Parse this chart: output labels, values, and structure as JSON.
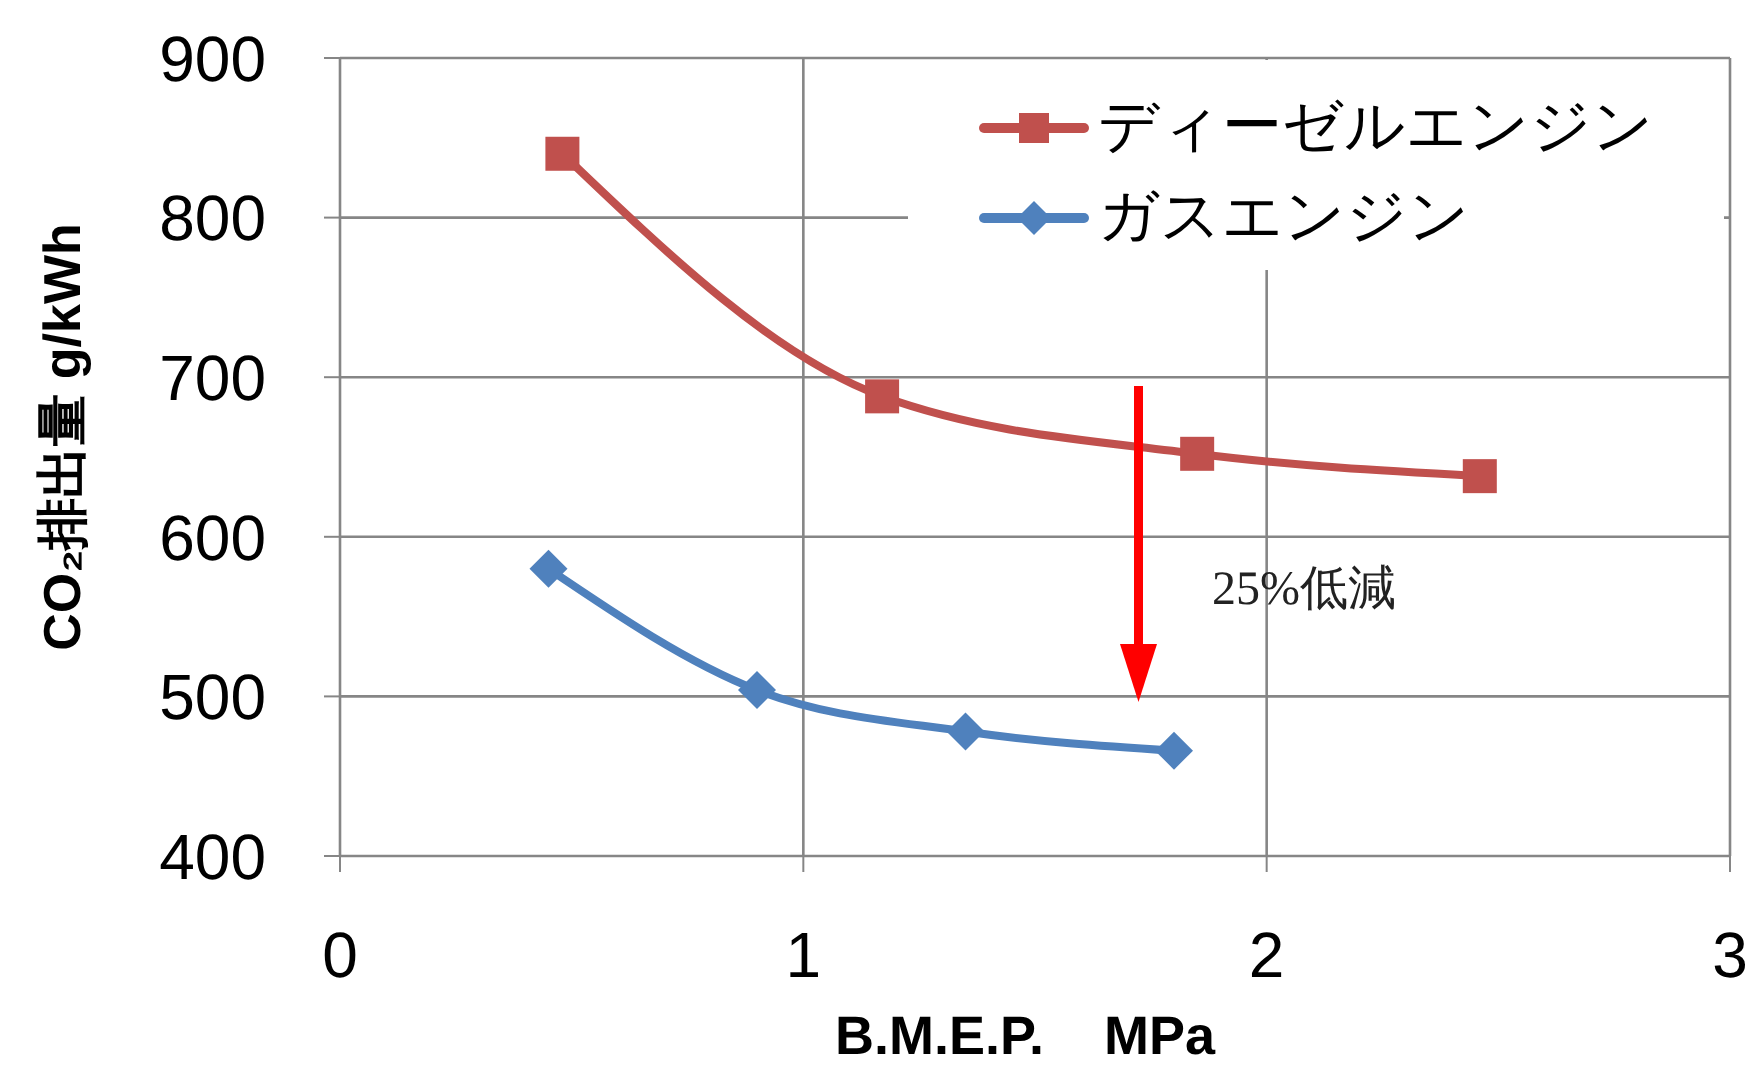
{
  "chart_data": {
    "type": "line",
    "xlabel": "B.M.E.P.    MPa",
    "ylabel": "CO₂排出量 g/kWh",
    "xlim": [
      0,
      3
    ],
    "xticks": [
      0,
      1,
      2,
      3
    ],
    "ylim": [
      400,
      900
    ],
    "yticks": [
      400,
      500,
      600,
      700,
      800,
      900
    ],
    "grid": true,
    "legend": "top right",
    "line_style": "solid",
    "annotations": [
      "25%低減"
    ],
    "series": [
      {
        "name": "ディーゼルエンジン",
        "color": "#c0504d",
        "marker": "square",
        "x": [
          0.48,
          1.17,
          1.85,
          2.46
        ],
        "values": [
          840,
          688,
          652,
          638
        ]
      },
      {
        "name": "ガスエンジン",
        "color": "#4f81bd",
        "marker": "diamond",
        "x": [
          0.45,
          0.9,
          1.35,
          1.8
        ],
        "values": [
          580,
          504,
          478,
          466
        ]
      }
    ]
  }
}
